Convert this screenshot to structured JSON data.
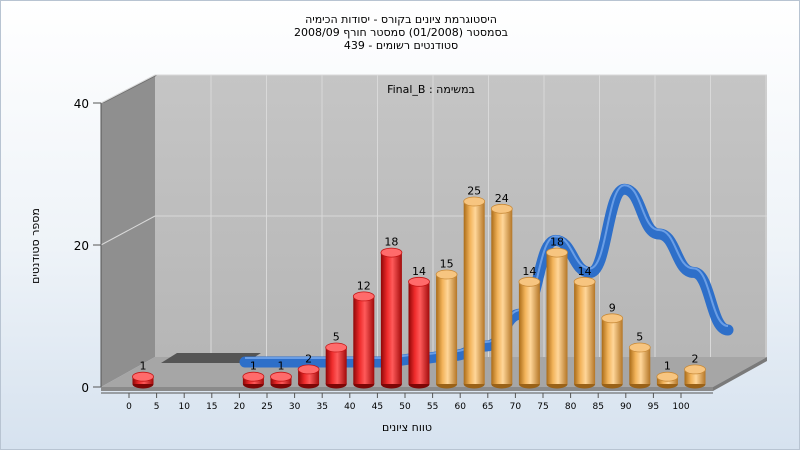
{
  "chart_title_lines": [
    "היסטוגרמת ציונים בקורס - יסודות הכימיה",
    "בסמסטר  (01/2008)  סמסטר חורף 2008/09",
    "סטודנטים רשומים - 439"
  ],
  "chart_data": {
    "type": "bar",
    "title": "היסטוגרמת ציונים בקורס - יסודות הכימיה",
    "subtitle": "בסמסטר  (01/2008)  סמסטר חורף 2008/09 / סטודנטים רשומים - 439",
    "annotation": "במשימה : Final_B",
    "xlabel": "טווח ציונים",
    "ylabel": "מספר סטודנטים",
    "x_ticks": [
      "0",
      "5",
      "10",
      "15",
      "20",
      "25",
      "30",
      "35",
      "40",
      "45",
      "50",
      "55",
      "60",
      "65",
      "70",
      "75",
      "80",
      "85",
      "90",
      "95",
      "100"
    ],
    "y_ticks": [
      "0",
      "20",
      "40"
    ],
    "ylim": [
      0,
      40
    ],
    "grid": true,
    "series": [
      {
        "type": "bar",
        "values": [
          1,
          0,
          0,
          0,
          1,
          1,
          2,
          5,
          12,
          18,
          14,
          15,
          25,
          24,
          14,
          18,
          14,
          9,
          5,
          1,
          2
        ],
        "labels": [
          "1",
          "",
          "",
          "",
          "1",
          "1",
          "2",
          "5",
          "12",
          "18",
          "14",
          "15",
          "25",
          "24",
          "14",
          "18",
          "14",
          "9",
          "5",
          "1",
          "2"
        ]
      },
      {
        "type": "line",
        "values": [
          0,
          0,
          0,
          0,
          0,
          0.5,
          1,
          2.5,
          7.5,
          19,
          14,
          27,
          20,
          14,
          5
        ]
      }
    ],
    "colors": {
      "fail": "#dd1c1c",
      "pass": "#e9a849",
      "curve": "#2e6fc9"
    }
  }
}
